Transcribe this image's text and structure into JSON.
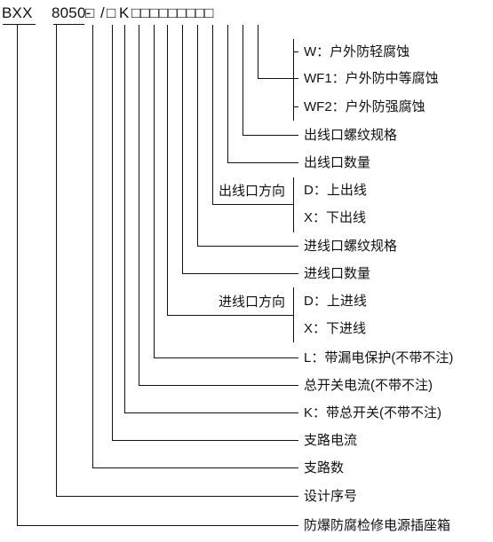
{
  "model_code": {
    "prefix": "BXX",
    "series": "8050-",
    "slot1": "□",
    "slash": "/",
    "slot2": "□",
    "k": "K",
    "boxes": "□□□□□□□□□"
  },
  "labels": [
    "W：户外防轻腐蚀",
    "WF1：户外防中等腐蚀",
    "WF2：户外防强腐蚀",
    "出线口螺纹规格",
    "出线口数量",
    "D：上出线",
    "X：下出线",
    "进线口螺纹规格",
    "进线口数量",
    "D：上进线",
    "X：下进线",
    "L：带漏电保护(不带不注)",
    "总开关电流(不带不注)",
    "K：带总开关(不带不注)",
    "支路电流",
    "支路数",
    "设计序号",
    "防爆防腐检修电源插座箱"
  ],
  "group_labels": {
    "outlet_direction": "出线口方向",
    "inlet_direction": "进线口方向"
  }
}
